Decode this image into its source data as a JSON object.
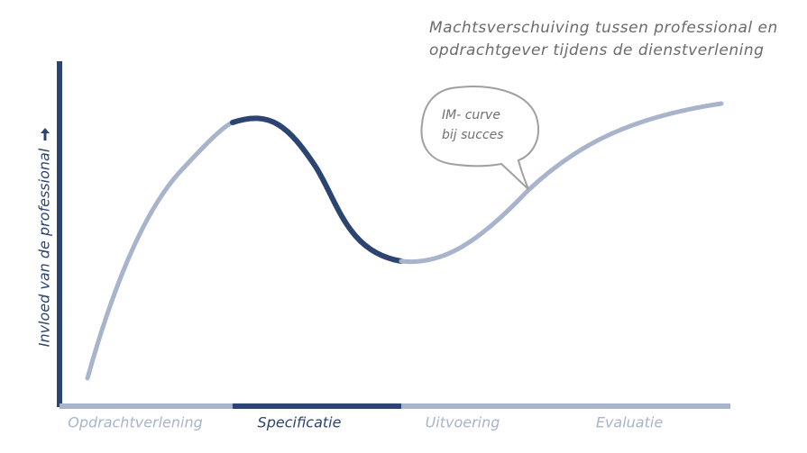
{
  "title": {
    "lines": [
      "Machtsverschuiving tussen professional en",
      "opdrachtgever tijdens de dienstverlening"
    ]
  },
  "y_axis_label": "Invloed van de professional",
  "phases": [
    "Opdrachtverlening",
    "Specificatie",
    "Uitvoering",
    "Evaluatie"
  ],
  "bubble": {
    "lines": [
      "IM- curve",
      "bij succes"
    ]
  }
}
